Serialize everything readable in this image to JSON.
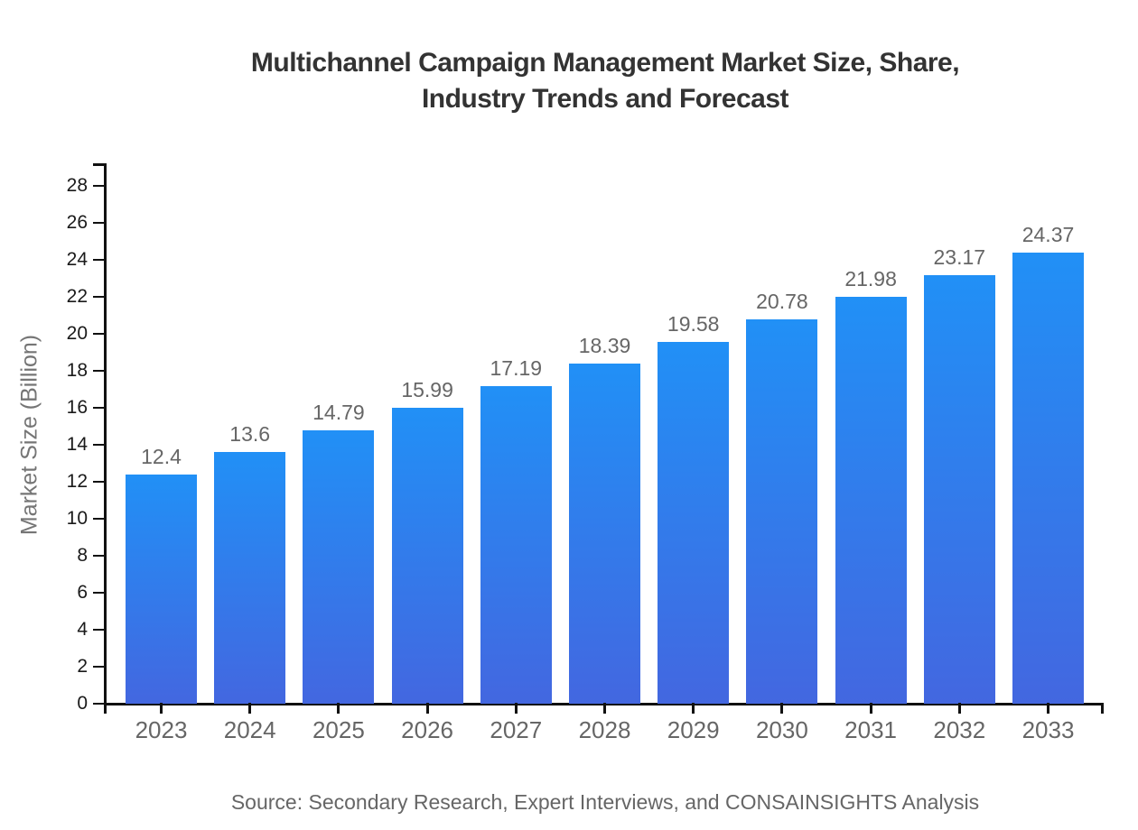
{
  "title": {
    "line1": "Multichannel Campaign Management Market Size, Share,",
    "line2": "Industry Trends and Forecast"
  },
  "y_axis": {
    "label": "Market Size (Billion)"
  },
  "footer": {
    "source": "Source: Secondary Research, Expert Interviews, and CONSAINSIGHTS Analysis"
  },
  "chart_data": {
    "type": "bar",
    "title": "Multichannel Campaign Management Market Size, Share, Industry Trends and Forecast",
    "categories": [
      "2023",
      "2024",
      "2025",
      "2026",
      "2027",
      "2028",
      "2029",
      "2030",
      "2031",
      "2032",
      "2033"
    ],
    "values": [
      12.4,
      13.6,
      14.79,
      15.99,
      17.19,
      18.39,
      19.58,
      20.78,
      21.98,
      23.17,
      24.37
    ],
    "value_labels": [
      "12.4",
      "13.6",
      "14.79",
      "15.99",
      "17.19",
      "18.39",
      "19.58",
      "20.78",
      "21.98",
      "23.17",
      "24.37"
    ],
    "xlabel": "",
    "ylabel": "Market Size (Billion)",
    "ylim": [
      0,
      29.2
    ],
    "yticks": [
      0,
      2,
      4,
      6,
      8,
      10,
      12,
      14,
      16,
      18,
      20,
      22,
      24,
      26,
      28
    ],
    "grid": false,
    "legend": false,
    "colors": {
      "bar_gradient_top": "#2190f6",
      "bar_gradient_bottom": "#4367e0",
      "axis": "#111111",
      "value_label": "#666666",
      "x_tick_label": "#666666",
      "y_tick_label": "#1a1a1a",
      "title": "#333333",
      "y_axis_label": "#757575",
      "source": "#666666"
    }
  }
}
